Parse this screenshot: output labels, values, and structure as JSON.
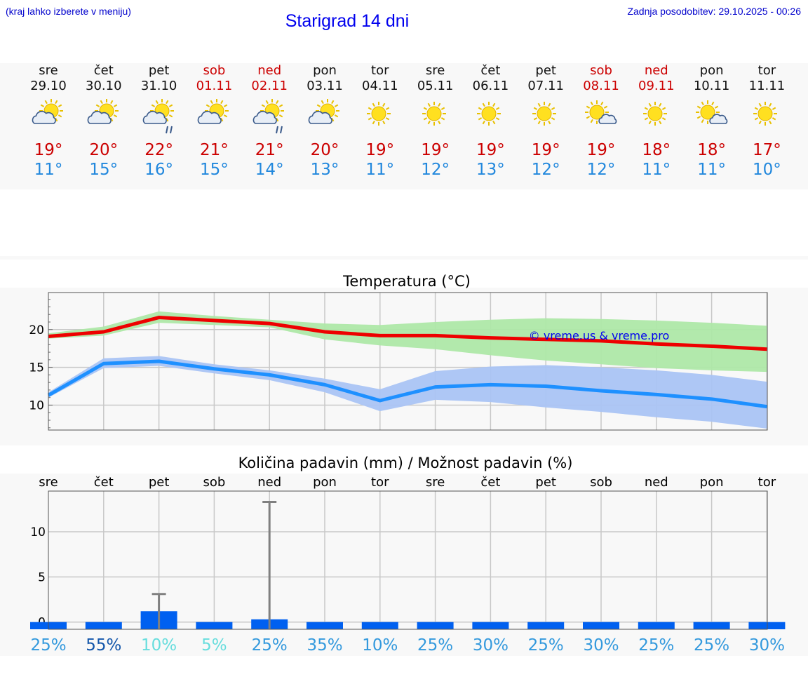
{
  "header": {
    "hint": "(kraj lahko izberete v meniju)",
    "title": "Starigrad 14 dni",
    "updated": "Zadnja posodobitev: 29.10.2025 - 00:26"
  },
  "watermark": "© vreme.us & vreme.pro",
  "days": [
    {
      "name": "sre",
      "date": "29.10",
      "weekend": false,
      "icon": "sun-cloud-icon",
      "tmax": "19°",
      "tmin": "11°"
    },
    {
      "name": "čet",
      "date": "30.10",
      "weekend": false,
      "icon": "sun-cloud-icon",
      "tmax": "20°",
      "tmin": "15°"
    },
    {
      "name": "pet",
      "date": "31.10",
      "weekend": false,
      "icon": "sun-cloud-rain-icon",
      "tmax": "22°",
      "tmin": "16°"
    },
    {
      "name": "sob",
      "date": "01.11",
      "weekend": true,
      "icon": "sun-cloud-icon",
      "tmax": "21°",
      "tmin": "15°"
    },
    {
      "name": "ned",
      "date": "02.11",
      "weekend": true,
      "icon": "sun-cloud-rain-icon",
      "tmax": "21°",
      "tmin": "14°"
    },
    {
      "name": "pon",
      "date": "03.11",
      "weekend": false,
      "icon": "sun-cloud-icon",
      "tmax": "20°",
      "tmin": "13°"
    },
    {
      "name": "tor",
      "date": "04.11",
      "weekend": false,
      "icon": "sun-icon",
      "tmax": "19°",
      "tmin": "11°"
    },
    {
      "name": "sre",
      "date": "05.11",
      "weekend": false,
      "icon": "sun-icon",
      "tmax": "19°",
      "tmin": "12°"
    },
    {
      "name": "čet",
      "date": "06.11",
      "weekend": false,
      "icon": "sun-icon",
      "tmax": "19°",
      "tmin": "13°"
    },
    {
      "name": "pet",
      "date": "07.11",
      "weekend": false,
      "icon": "sun-icon",
      "tmax": "19°",
      "tmin": "12°"
    },
    {
      "name": "sob",
      "date": "08.11",
      "weekend": true,
      "icon": "sun-small-cloud-icon",
      "tmax": "19°",
      "tmin": "12°"
    },
    {
      "name": "ned",
      "date": "09.11",
      "weekend": true,
      "icon": "sun-icon",
      "tmax": "18°",
      "tmin": "11°"
    },
    {
      "name": "pon",
      "date": "10.11",
      "weekend": false,
      "icon": "sun-small-cloud-icon",
      "tmax": "18°",
      "tmin": "11°"
    },
    {
      "name": "tor",
      "date": "11.11",
      "weekend": false,
      "icon": "sun-icon",
      "tmax": "17°",
      "tmin": "10°"
    }
  ],
  "colors": {
    "max_line": "#ee0000",
    "max_band": "#aee8a8",
    "min_line": "#1e90ff",
    "min_band": "#aac4f4",
    "bar": "#0060f0",
    "whisker": "#808080"
  },
  "chart_data": [
    {
      "type": "line",
      "title": "Temperatura (°C)",
      "x": [
        0,
        1,
        2,
        3,
        4,
        5,
        6,
        7,
        8,
        9,
        10,
        11,
        12,
        13
      ],
      "ylim": [
        6.7,
        24.9
      ],
      "yticks": [
        10,
        15,
        20
      ],
      "series": [
        {
          "name": "max",
          "values": [
            19.1,
            19.7,
            21.6,
            21.2,
            20.8,
            19.7,
            19.2,
            19.2,
            18.9,
            18.7,
            18.5,
            18.1,
            17.8,
            17.4
          ],
          "band_low": [
            18.8,
            19.2,
            20.9,
            20.6,
            20.3,
            18.7,
            17.9,
            17.4,
            16.6,
            15.9,
            15.4,
            14.9,
            14.6,
            14.4
          ],
          "band_high": [
            19.5,
            20.4,
            22.4,
            21.8,
            21.3,
            20.8,
            20.6,
            21.0,
            21.3,
            21.5,
            21.4,
            21.2,
            20.9,
            20.5
          ]
        },
        {
          "name": "min",
          "values": [
            11.3,
            15.5,
            15.8,
            14.8,
            14.0,
            12.7,
            10.6,
            12.4,
            12.7,
            12.5,
            11.9,
            11.4,
            10.8,
            9.8
          ],
          "band_low": [
            11.0,
            14.9,
            15.2,
            14.2,
            13.3,
            11.7,
            9.2,
            10.7,
            10.4,
            9.7,
            9.1,
            8.4,
            7.8,
            6.9
          ],
          "band_high": [
            11.7,
            16.2,
            16.5,
            15.4,
            14.6,
            13.5,
            12.1,
            14.5,
            15.1,
            15.3,
            15.0,
            14.6,
            14.0,
            13.1
          ]
        }
      ]
    },
    {
      "type": "bar",
      "title": "Količina padavin (mm) / Možnost padavin (%)",
      "categories": [
        "sre",
        "čet",
        "pet",
        "sob",
        "ned",
        "pon",
        "tor",
        "sre",
        "čet",
        "pet",
        "sob",
        "ned",
        "pon",
        "tor"
      ],
      "values": [
        0,
        0,
        1.2,
        0,
        0.3,
        0,
        0,
        0,
        0,
        0,
        0,
        0,
        0,
        0
      ],
      "max_values": [
        0,
        0,
        3.1,
        0,
        13.3,
        0,
        0,
        0,
        0,
        0,
        0,
        0,
        0,
        0
      ],
      "ylim": [
        -0.8,
        14.5
      ],
      "yticks": [
        0,
        5,
        10
      ],
      "probabilities": [
        "25%",
        "55%",
        "10%",
        "5%",
        "25%",
        "35%",
        "10%",
        "25%",
        "30%",
        "25%",
        "30%",
        "25%",
        "25%",
        "30%"
      ],
      "probability_colors": [
        "#3399dd",
        "#1155aa",
        "#66dddd",
        "#66dddd",
        "#3399dd",
        "#3399dd",
        "#3399dd",
        "#3399dd",
        "#3399dd",
        "#3399dd",
        "#3399dd",
        "#3399dd",
        "#3399dd",
        "#3399dd"
      ]
    }
  ]
}
